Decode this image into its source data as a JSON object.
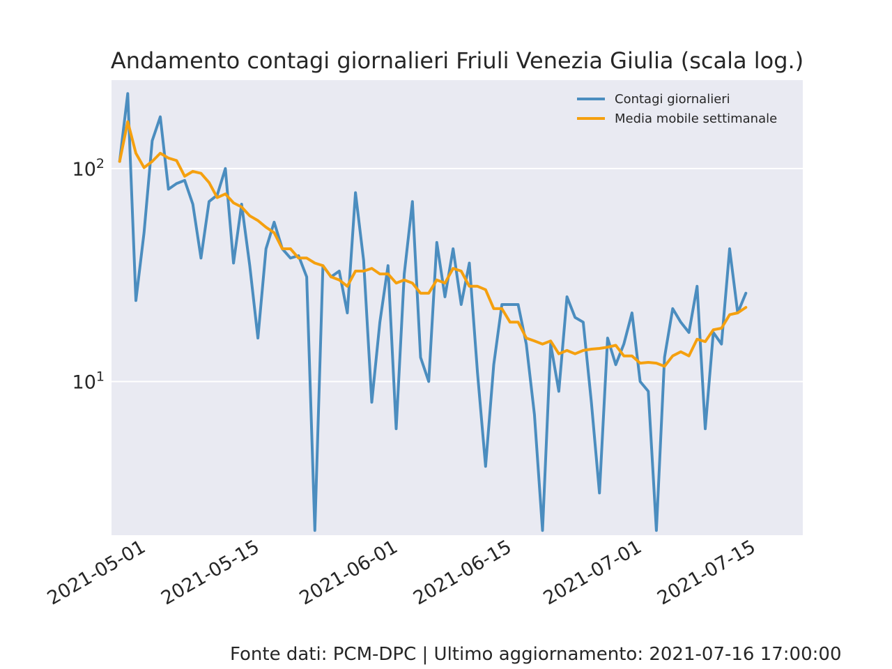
{
  "chart_data": {
    "type": "line",
    "title": "Andamento contagi giornalieri Friuli Venezia Giulia (scala log.)",
    "xlabel": "",
    "ylabel": "",
    "y_scale": "log",
    "ylim": [
      1.9,
      260
    ],
    "xlim": [
      "2021-04-27",
      "2021-07-21"
    ],
    "x_ticks": [
      "2021-05-01",
      "2021-05-15",
      "2021-06-01",
      "2021-06-15",
      "2021-07-01",
      "2021-07-15"
    ],
    "y_ticks": [
      {
        "value": 10,
        "base": "10",
        "exp": "1"
      },
      {
        "value": 100,
        "base": "10",
        "exp": "2"
      }
    ],
    "grid": true,
    "background_color": "#e9eaf2",
    "legend_position": "top-right",
    "x_start": "2021-04-28",
    "series": [
      {
        "name": "Contagi giornalieri",
        "color": "#4b8dbf",
        "values": [
          108,
          225,
          24,
          50,
          135,
          175,
          80,
          85,
          88,
          68,
          38,
          70,
          75,
          100,
          36,
          68,
          35,
          16,
          42,
          56,
          42,
          38,
          39,
          31,
          2,
          35,
          31,
          33,
          21,
          77,
          37,
          8,
          19,
          35,
          6,
          32,
          70,
          13,
          10,
          45,
          25,
          42,
          23,
          36,
          11,
          4,
          12,
          23,
          23,
          23,
          15,
          7,
          2,
          15,
          9,
          25,
          20,
          19,
          8,
          3,
          16,
          12,
          15,
          21,
          10,
          9,
          2,
          13,
          22,
          19,
          17,
          28,
          6,
          17,
          15,
          42,
          21,
          26
        ]
      },
      {
        "name": "Media mobile settimanale",
        "color": "#f5a00f",
        "values": [
          108,
          166,
          118,
          101,
          108,
          118,
          112,
          109,
          92,
          97,
          95,
          86,
          73,
          76,
          69,
          66,
          60,
          57,
          53,
          50,
          42,
          42,
          38,
          38,
          36,
          35,
          31,
          30,
          28,
          33,
          33,
          34,
          32,
          32,
          29,
          30,
          29,
          26,
          26,
          30,
          29,
          34,
          33,
          28,
          28,
          27,
          22,
          22,
          19,
          19,
          16,
          15.5,
          15,
          15.5,
          13.5,
          14,
          13.5,
          14,
          14.2,
          14.3,
          14.5,
          14.8,
          13.2,
          13.2,
          12.2,
          12.3,
          12.2,
          11.8,
          13.2,
          13.8,
          13.2,
          15.8,
          15.4,
          17.5,
          17.8,
          20.6,
          21,
          22.3
        ]
      }
    ]
  },
  "footer": {
    "text": "Fonte dati: PCM-DPC | Ultimo aggiornamento: 2021-07-16 17:00:00"
  }
}
